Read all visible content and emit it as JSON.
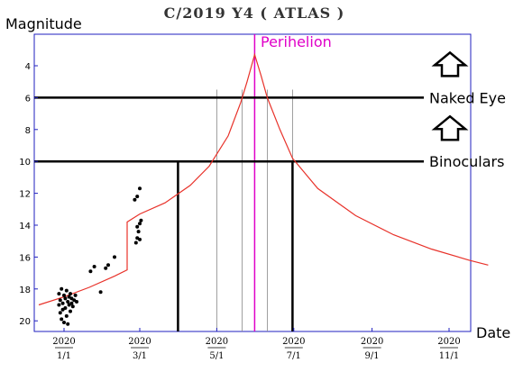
{
  "chart_data": {
    "type": "line",
    "title": "C/2019 Y4 ( ATLAS )",
    "ylabel": "Magnitude",
    "xlabel": "Date",
    "x_tick_year": "2020",
    "x_ticks": [
      "1/1",
      "3/1",
      "5/1",
      "7/1",
      "9/1",
      "11/1"
    ],
    "y_ticks": [
      "4",
      "6",
      "8",
      "10",
      "12",
      "14",
      "16",
      "18",
      "20"
    ],
    "ylim": [
      20.8,
      2.2
    ],
    "y_inverted": true,
    "xlim_days": [
      -20,
      345
    ],
    "perihelion": {
      "label": "Perihelion",
      "day": 151,
      "magnitude": 3.3,
      "color": "#e000c8"
    },
    "thresholds": [
      {
        "label": "Naked Eye",
        "magnitude": 6
      },
      {
        "label": "Binoculars",
        "magnitude": 10
      }
    ],
    "marker_days": [
      121,
      141,
      161,
      181
    ],
    "prediction_color": "#e8322a",
    "prediction": [
      {
        "x": "2019-12-12",
        "y": 19.0
      },
      {
        "x": "2020-01-01",
        "y": 18.5
      },
      {
        "x": "2020-01-21",
        "y": 17.9
      },
      {
        "x": "2020-02-10",
        "y": 17.2
      },
      {
        "x": "2020-02-20",
        "y": 16.8
      },
      {
        "x": "2020-02-20",
        "y": 13.8
      },
      {
        "x": "2020-03-01",
        "y": 13.3
      },
      {
        "x": "2020-03-21",
        "y": 12.6
      },
      {
        "x": "2020-04-10",
        "y": 11.5
      },
      {
        "x": "2020-04-25",
        "y": 10.3
      },
      {
        "x": "2020-05-10",
        "y": 8.4
      },
      {
        "x": "2020-05-20",
        "y": 6.3
      },
      {
        "x": "2020-05-25",
        "y": 5.0
      },
      {
        "x": "2020-05-31",
        "y": 3.3
      },
      {
        "x": "2020-06-05",
        "y": 4.6
      },
      {
        "x": "2020-06-10",
        "y": 6.0
      },
      {
        "x": "2020-06-20",
        "y": 8.0
      },
      {
        "x": "2020-06-30",
        "y": 9.8
      },
      {
        "x": "2020-07-20",
        "y": 11.7
      },
      {
        "x": "2020-08-19",
        "y": 13.4
      },
      {
        "x": "2020-09-18",
        "y": 14.6
      },
      {
        "x": "2020-10-18",
        "y": 15.5
      },
      {
        "x": "2020-11-17",
        "y": 16.2
      },
      {
        "x": "2020-12-02",
        "y": 16.5
      }
    ],
    "observations": [
      {
        "x": "2019-12-28",
        "y": 19.0
      },
      {
        "x": "2019-12-28",
        "y": 18.3
      },
      {
        "x": "2019-12-29",
        "y": 19.5
      },
      {
        "x": "2019-12-29",
        "y": 18.7
      },
      {
        "x": "2019-12-30",
        "y": 18.0
      },
      {
        "x": "2019-12-30",
        "y": 19.9
      },
      {
        "x": "2019-12-31",
        "y": 18.9
      },
      {
        "x": "2019-12-31",
        "y": 19.3
      },
      {
        "x": "2020-01-01",
        "y": 18.4
      },
      {
        "x": "2020-01-01",
        "y": 20.1
      },
      {
        "x": "2020-01-02",
        "y": 18.6
      },
      {
        "x": "2020-01-02",
        "y": 19.2
      },
      {
        "x": "2020-01-03",
        "y": 18.1
      },
      {
        "x": "2020-01-03",
        "y": 19.7
      },
      {
        "x": "2020-01-04",
        "y": 18.8
      },
      {
        "x": "2020-01-04",
        "y": 20.2
      },
      {
        "x": "2020-01-05",
        "y": 18.5
      },
      {
        "x": "2020-01-05",
        "y": 19.0
      },
      {
        "x": "2020-01-06",
        "y": 18.3
      },
      {
        "x": "2020-01-06",
        "y": 19.4
      },
      {
        "x": "2020-01-07",
        "y": 18.9
      },
      {
        "x": "2020-01-07",
        "y": 18.6
      },
      {
        "x": "2020-01-08",
        "y": 19.1
      },
      {
        "x": "2020-01-09",
        "y": 18.7
      },
      {
        "x": "2020-01-10",
        "y": 18.4
      },
      {
        "x": "2020-01-11",
        "y": 18.8
      },
      {
        "x": "2020-01-22",
        "y": 16.9
      },
      {
        "x": "2020-01-25",
        "y": 16.6
      },
      {
        "x": "2020-01-30",
        "y": 18.2
      },
      {
        "x": "2020-02-03",
        "y": 16.7
      },
      {
        "x": "2020-02-05",
        "y": 16.5
      },
      {
        "x": "2020-02-10",
        "y": 16.0
      },
      {
        "x": "2020-02-27",
        "y": 15.1
      },
      {
        "x": "2020-02-28",
        "y": 14.8
      },
      {
        "x": "2020-02-28",
        "y": 14.1
      },
      {
        "x": "2020-02-29",
        "y": 14.4
      },
      {
        "x": "2020-03-01",
        "y": 13.9
      },
      {
        "x": "2020-03-01",
        "y": 14.9
      },
      {
        "x": "2020-03-02",
        "y": 13.7
      },
      {
        "x": "2020-02-26",
        "y": 12.4
      },
      {
        "x": "2020-02-28",
        "y": 12.2
      },
      {
        "x": "2020-03-01",
        "y": 11.7
      }
    ]
  }
}
